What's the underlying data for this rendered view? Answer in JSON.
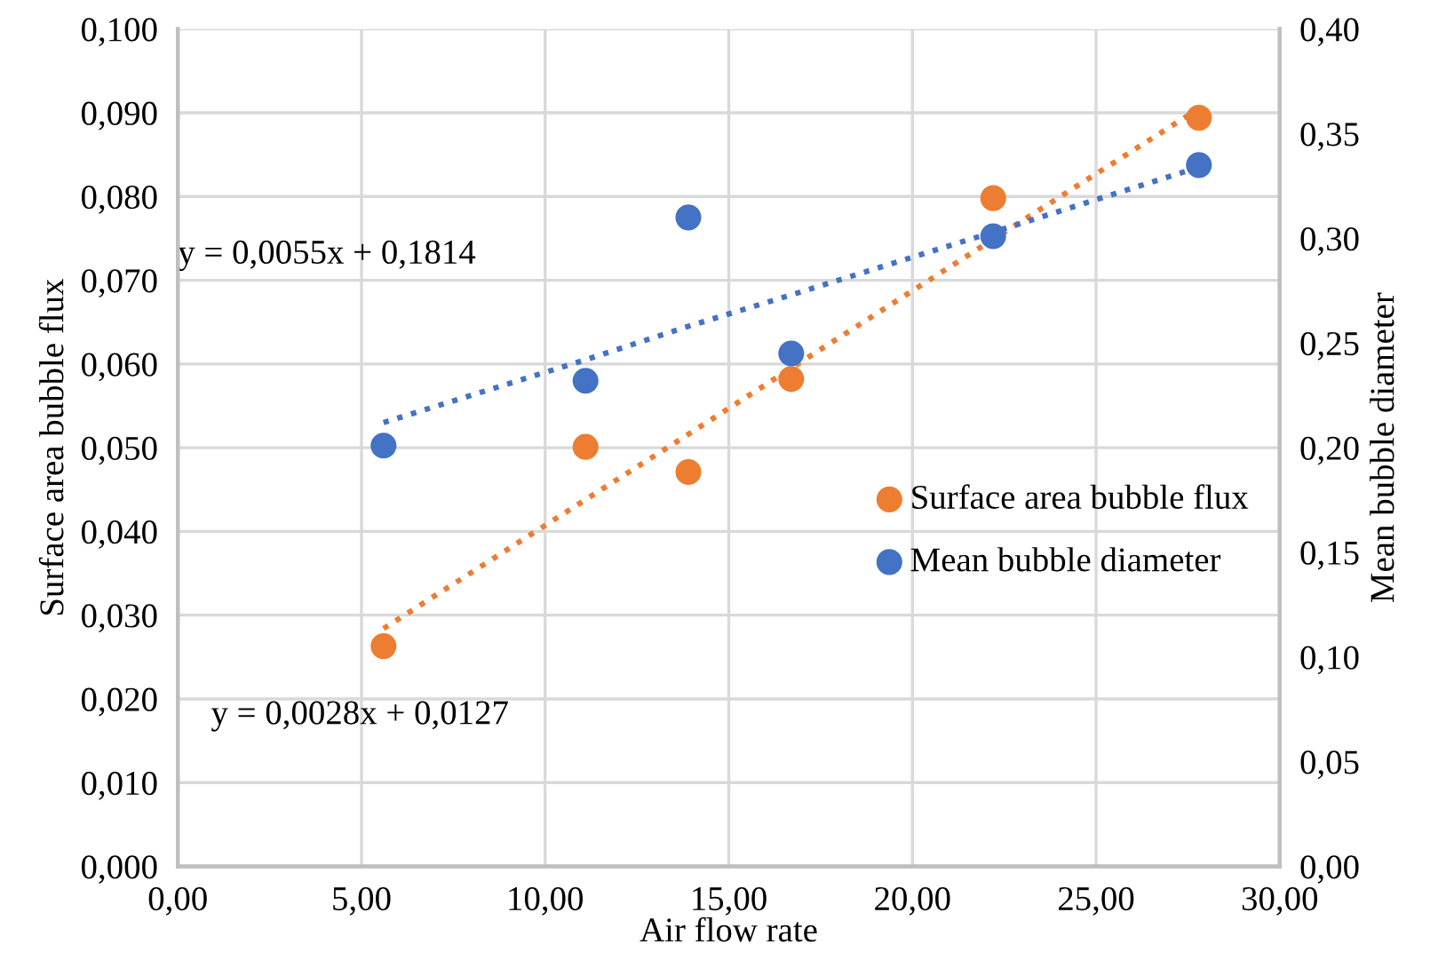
{
  "chart_data": {
    "type": "scatter",
    "xlabel": "Air flow rate",
    "ylabel": "Surface area bubble flux",
    "y2label": "Mean bubble diameter",
    "x": [
      5.6,
      11.1,
      13.9,
      16.7,
      22.2,
      27.8
    ],
    "series": [
      {
        "name": "Surface area bubble flux",
        "color": "#ed7d31",
        "values": [
          0.0263,
          0.0501,
          0.0471,
          0.0582,
          0.0798,
          0.0894
        ],
        "marker": "circle"
      },
      {
        "name": "Mean bubble diameter",
        "color": "#4472c4",
        "axis": "y2",
        "values": [
          0.201,
          0.232,
          0.31,
          0.245,
          0.301,
          0.335
        ],
        "marker": "circle"
      },
      {
        "type": "line",
        "color": "#ed7d31",
        "values": [
          0.0284,
          0.0438,
          0.0516,
          0.0595,
          0.0749,
          0.0905
        ],
        "line_style": "dotted",
        "marker": "none"
      },
      {
        "type": "line",
        "color": "#4472c4",
        "axis": "y2",
        "values": [
          0.212,
          0.242,
          0.258,
          0.273,
          0.303,
          0.334
        ],
        "line_style": "dotted",
        "marker": "none"
      }
    ],
    "annotations": [
      "y = 0,0055x + 0,1814",
      "y = 0,0028x + 0,0127"
    ],
    "xlim": [
      0,
      30
    ],
    "xticks": [
      {
        "value": 0,
        "label": "0,00"
      },
      {
        "value": 5,
        "label": "5,00"
      },
      {
        "value": 10,
        "label": "10,00"
      },
      {
        "value": 15,
        "label": "15,00"
      },
      {
        "value": 20,
        "label": "20,00"
      },
      {
        "value": 25,
        "label": "25,00"
      },
      {
        "value": 30,
        "label": "30,00"
      }
    ],
    "ylim": [
      0,
      0.1
    ],
    "yticks": [
      {
        "value": 0,
        "label": "0,000"
      },
      {
        "value": 0.01,
        "label": "0,010"
      },
      {
        "value": 0.02,
        "label": "0,020"
      },
      {
        "value": 0.03,
        "label": "0,030"
      },
      {
        "value": 0.04,
        "label": "0,040"
      },
      {
        "value": 0.05,
        "label": "0,050"
      },
      {
        "value": 0.06,
        "label": "0,060"
      },
      {
        "value": 0.07,
        "label": "0,070"
      },
      {
        "value": 0.08,
        "label": "0,080"
      },
      {
        "value": 0.09,
        "label": "0,090"
      },
      {
        "value": 0.1,
        "label": "0,100"
      }
    ],
    "y2lim": [
      0,
      0.4
    ],
    "y2ticks": [
      {
        "value": 0,
        "label": "0,00"
      },
      {
        "value": 0.05,
        "label": "0,05"
      },
      {
        "value": 0.1,
        "label": "0,10"
      },
      {
        "value": 0.15,
        "label": "0,15"
      },
      {
        "value": 0.2,
        "label": "0,20"
      },
      {
        "value": 0.25,
        "label": "0,25"
      },
      {
        "value": 0.3,
        "label": "0,30"
      },
      {
        "value": 0.35,
        "label": "0,35"
      },
      {
        "value": 0.4,
        "label": "0,40"
      }
    ],
    "grid": true,
    "legend": "center right"
  }
}
